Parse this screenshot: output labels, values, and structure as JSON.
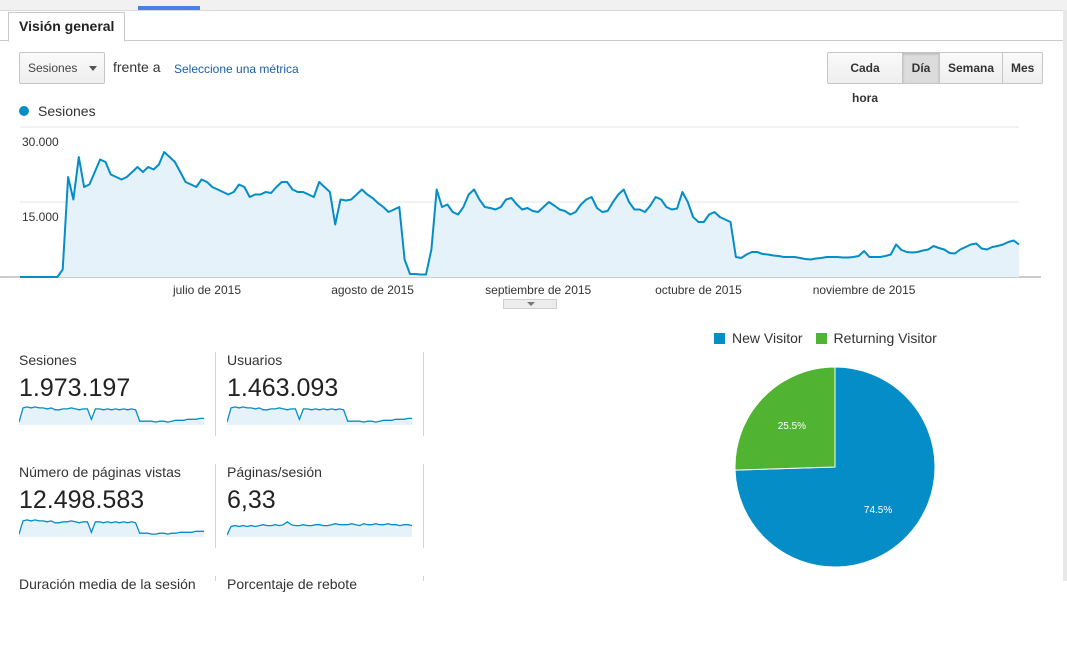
{
  "tab": {
    "label": "Visión general"
  },
  "controls": {
    "metric_select": "Sesiones",
    "vs_label": "frente a",
    "metric_link": "Seleccione una métrica",
    "periods": [
      {
        "label": "Cada hora",
        "active": false
      },
      {
        "label": "Día",
        "active": true
      },
      {
        "label": "Semana",
        "active": false
      },
      {
        "label": "Mes",
        "active": false
      }
    ]
  },
  "colors": {
    "accent": "#058dc7",
    "fill": "#e5f2f9",
    "returning": "#50b432"
  },
  "chart_data": [
    {
      "type": "area",
      "series": [
        {
          "name": "Sesiones",
          "values": [
            0,
            0,
            0,
            0,
            0,
            0,
            0,
            0,
            1500,
            20000,
            15500,
            24000,
            18000,
            18500,
            21000,
            23500,
            23000,
            20500,
            20000,
            19500,
            20000,
            21000,
            22000,
            21000,
            22000,
            21500,
            22500,
            25000,
            24000,
            23000,
            21000,
            19000,
            18500,
            18000,
            19500,
            19000,
            18000,
            17500,
            17000,
            16500,
            17000,
            18500,
            18000,
            16000,
            16500,
            16500,
            17000,
            16800,
            18000,
            19000,
            19000,
            17500,
            17000,
            17000,
            16500,
            16000,
            19000,
            18000,
            17000,
            10500,
            15500,
            15300,
            15500,
            16500,
            17500,
            16500,
            15800,
            14800,
            14000,
            13000,
            13500,
            14000,
            3500,
            600,
            600,
            500,
            500,
            5500,
            17500,
            14000,
            14500,
            13000,
            12500,
            14000,
            16500,
            17500,
            15500,
            14000,
            13800,
            13500,
            14000,
            15500,
            15800,
            14500,
            13500,
            13800,
            13200,
            13000,
            14000,
            15000,
            14300,
            13500,
            13200,
            12500,
            13000,
            14500,
            15500,
            16000,
            13800,
            13000,
            13200,
            15000,
            16500,
            17500,
            15000,
            13500,
            13500,
            13000,
            14300,
            16000,
            15500,
            14000,
            13500,
            13700,
            17000,
            15000,
            12000,
            11000,
            11000,
            12500,
            13000,
            12000,
            11500,
            11000,
            4000,
            3800,
            4500,
            5000,
            5000,
            4600,
            4500,
            4300,
            4200,
            4000,
            4000,
            4000,
            3800,
            3600,
            3500,
            3700,
            3800,
            4000,
            4000,
            4000,
            3900,
            3900,
            4000,
            4200,
            5200,
            4000,
            4000,
            4000,
            4200,
            4500,
            6500,
            5400,
            5000,
            4900,
            5000,
            5300,
            5500,
            6200,
            5800,
            5500,
            4800,
            4700,
            5500,
            6000,
            6500,
            6700,
            5700,
            5500,
            6000,
            6200,
            6500,
            7000,
            7300,
            6500
          ]
        }
      ],
      "ylim": [
        0,
        30000
      ],
      "yticks": [
        "30.000",
        "15.000"
      ],
      "xticks": [
        {
          "label": "julio de 2015",
          "index": 35
        },
        {
          "label": "agosto de 2015",
          "index": 66
        },
        {
          "label": "septiembre de 2015",
          "index": 97
        },
        {
          "label": "octubre de 2015",
          "index": 127
        },
        {
          "label": "noviembre de 2015",
          "index": 158
        }
      ],
      "grid": true
    },
    {
      "type": "pie",
      "series": [
        {
          "name": "New Visitor",
          "value": 74.5,
          "label": "74.5%"
        },
        {
          "name": "Returning Visitor",
          "value": 25.5,
          "label": "25.5%"
        }
      ]
    }
  ],
  "scorecards": [
    {
      "label": "Sesiones",
      "value": "1.973.197",
      "spark": [
        3,
        18,
        19,
        18,
        19,
        18,
        18,
        17,
        18,
        16,
        16,
        17,
        17,
        18,
        17,
        16,
        17,
        17,
        6,
        17,
        17,
        16,
        17,
        16,
        17,
        16,
        17,
        16,
        17,
        16,
        4,
        4,
        4,
        4,
        3,
        4,
        4,
        3,
        4,
        5,
        5,
        5,
        6,
        6,
        6,
        7,
        7
      ]
    },
    {
      "label": "Usuarios",
      "value": "1.463.093",
      "spark": [
        3,
        18,
        19,
        18,
        19,
        18,
        18,
        17,
        18,
        16,
        16,
        17,
        17,
        18,
        17,
        16,
        17,
        17,
        6,
        17,
        17,
        16,
        17,
        16,
        17,
        16,
        17,
        16,
        17,
        16,
        4,
        4,
        4,
        4,
        3,
        4,
        4,
        3,
        4,
        5,
        5,
        5,
        6,
        6,
        6,
        7,
        7
      ]
    },
    {
      "label": "Número de páginas vistas",
      "value": "12.498.583",
      "spark": [
        3,
        17,
        18,
        17,
        18,
        17,
        17,
        16,
        17,
        15,
        15,
        16,
        16,
        17,
        16,
        15,
        16,
        16,
        5,
        16,
        16,
        15,
        16,
        15,
        16,
        15,
        16,
        15,
        16,
        15,
        4,
        4,
        4,
        3,
        3,
        4,
        4,
        3,
        4,
        4,
        5,
        5,
        5,
        5,
        6,
        6,
        6
      ]
    },
    {
      "label": "Páginas/sesión",
      "value": "6,33",
      "spark": [
        2,
        11,
        12,
        11,
        12,
        11,
        12,
        11,
        12,
        13,
        12,
        12,
        13,
        12,
        13,
        16,
        13,
        12,
        12,
        13,
        12,
        12,
        13,
        13,
        12,
        12,
        13,
        14,
        13,
        13,
        13,
        14,
        13,
        12,
        14,
        13,
        13,
        14,
        13,
        13,
        14,
        13,
        13,
        12,
        13,
        13,
        12
      ]
    },
    {
      "label": "Duración media de la sesión",
      "value": ""
    },
    {
      "label": "Porcentaje de rebote",
      "value": ""
    }
  ]
}
